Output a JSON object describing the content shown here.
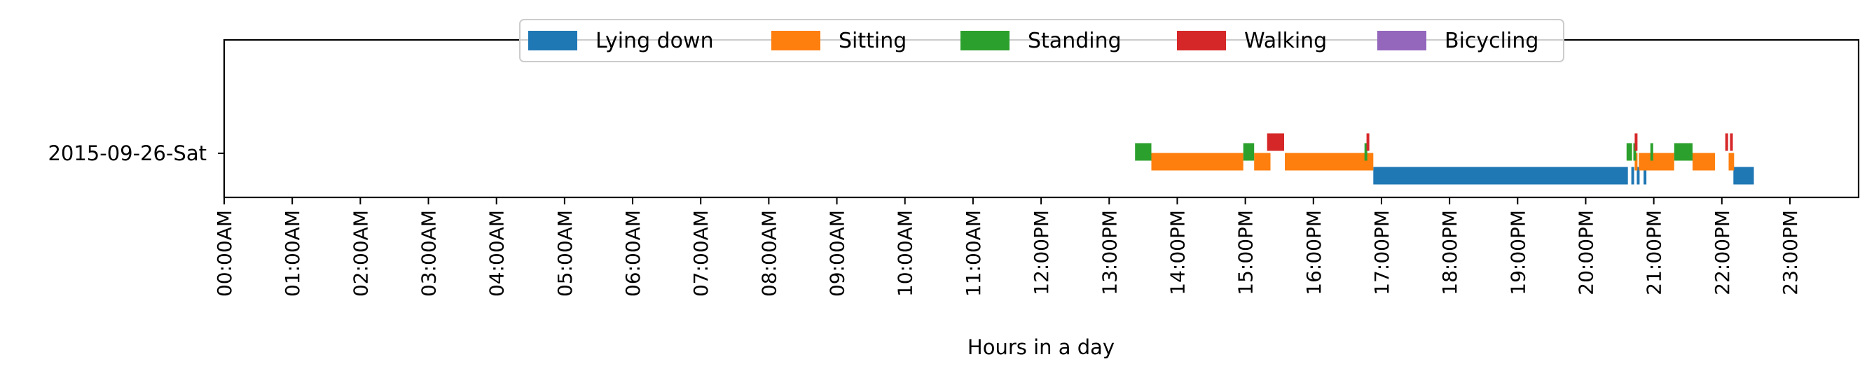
{
  "chart_data": {
    "type": "timeline",
    "xlabel": "Hours in a day",
    "xlim": [
      0,
      24
    ],
    "x_tick_labels": [
      "00:00AM",
      "01:00AM",
      "02:00AM",
      "03:00AM",
      "04:00AM",
      "05:00AM",
      "06:00AM",
      "07:00AM",
      "08:00AM",
      "09:00AM",
      "10:00AM",
      "11:00AM",
      "12:00PM",
      "13:00PM",
      "14:00PM",
      "15:00PM",
      "16:00PM",
      "17:00PM",
      "18:00PM",
      "19:00PM",
      "20:00PM",
      "21:00PM",
      "22:00PM",
      "23:00PM"
    ],
    "categories": [
      "2015-09-26-Sat"
    ],
    "legend_position": "top-center",
    "grid": false,
    "series": [
      {
        "name": "Lying down",
        "color": "#1f77b4",
        "intervals": [
          [
            16.88,
            20.62
          ],
          [
            20.67,
            20.7
          ],
          [
            20.75,
            20.78
          ],
          [
            20.85,
            20.88
          ],
          [
            22.17,
            22.47
          ]
        ]
      },
      {
        "name": "Sitting",
        "color": "#ff7f0e",
        "intervals": [
          [
            13.62,
            14.97
          ],
          [
            15.13,
            15.37
          ],
          [
            15.58,
            16.88
          ],
          [
            20.72,
            20.75
          ],
          [
            20.78,
            21.3
          ],
          [
            21.57,
            21.9
          ],
          [
            22.1,
            22.18
          ]
        ]
      },
      {
        "name": "Standing",
        "color": "#2ca02c",
        "intervals": [
          [
            13.38,
            13.62
          ],
          [
            14.97,
            15.13
          ],
          [
            16.75,
            16.78
          ],
          [
            20.6,
            20.68
          ],
          [
            20.7,
            20.72
          ],
          [
            20.95,
            20.98
          ],
          [
            21.3,
            21.57
          ]
        ]
      },
      {
        "name": "Walking",
        "color": "#d62728",
        "intervals": [
          [
            15.32,
            15.57
          ],
          [
            16.78,
            16.81
          ],
          [
            20.72,
            20.75
          ],
          [
            22.05,
            22.08
          ],
          [
            22.12,
            22.15
          ]
        ]
      },
      {
        "name": "Bicycling",
        "color": "#9467bd",
        "intervals": []
      }
    ]
  }
}
